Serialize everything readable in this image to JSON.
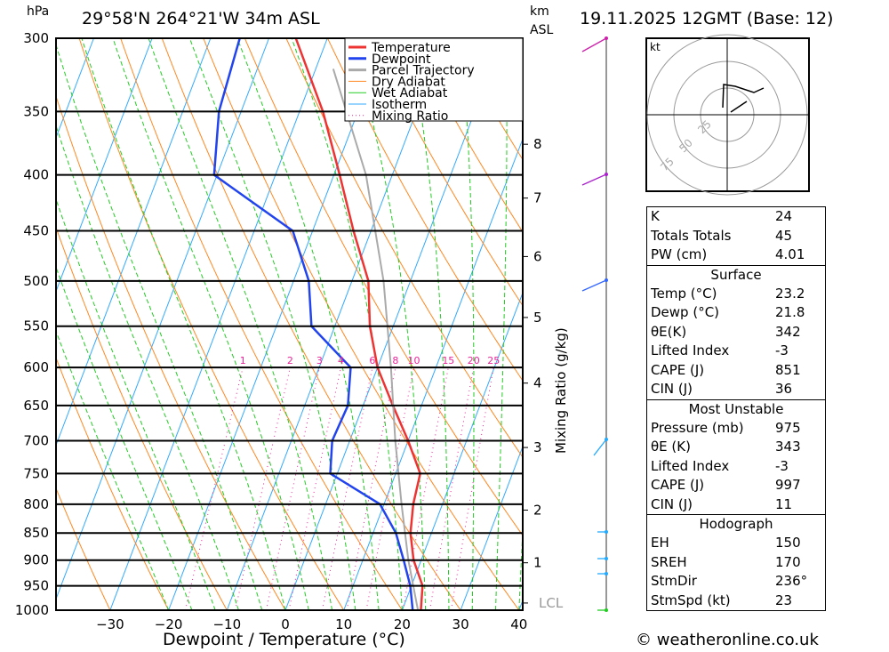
{
  "header": {
    "hpa": "hPa",
    "location": "29°58'N 264°21'W 34m ASL",
    "km": "km",
    "asl": "ASL",
    "datetime": "19.11.2025 12GMT (Base: 12)"
  },
  "chart_data": {
    "type": "line",
    "title": "29°58'N 264°21'W 34m ASL",
    "xlabel": "Dewpoint / Temperature (°C)",
    "ylabel": "hPa",
    "y2label": "Mixing Ratio (g/kg)",
    "xlim": [
      -40,
      40
    ],
    "ylim": [
      1000,
      300
    ],
    "x_ticks": [
      -30,
      -20,
      -10,
      0,
      10,
      20,
      30,
      40
    ],
    "p_ticks": [
      300,
      350,
      400,
      450,
      500,
      550,
      600,
      650,
      700,
      750,
      800,
      850,
      900,
      950,
      1000
    ],
    "km_ticks": [
      {
        "km": "8",
        "p": 375
      },
      {
        "km": "7",
        "p": 420
      },
      {
        "km": "6",
        "p": 475
      },
      {
        "km": "5",
        "p": 540
      },
      {
        "km": "4",
        "p": 620
      },
      {
        "km": "3",
        "p": 710
      },
      {
        "km": "2",
        "p": 810
      },
      {
        "km": "1",
        "p": 905
      },
      {
        "km": "LCL",
        "p": 985
      }
    ],
    "mixing_ratio_labels": [
      "1",
      "2",
      "3",
      "4",
      "6",
      "8",
      "10",
      "15",
      "20",
      "25"
    ],
    "pressure": [
      1000,
      950,
      900,
      850,
      800,
      750,
      700,
      650,
      600,
      550,
      500,
      450,
      400,
      350,
      300
    ],
    "series": [
      {
        "name": "Temperature",
        "color": "#ee3333",
        "values": [
          23.2,
          21.9,
          18.7,
          16.4,
          15.0,
          14.2,
          10.0,
          5.1,
          0.0,
          -4.0,
          -7.2,
          -13.0,
          -19.0,
          -26.0,
          -35.4
        ]
      },
      {
        "name": "Dewpoint",
        "color": "#2244ee",
        "values": [
          21.8,
          19.8,
          17.0,
          13.9,
          9.3,
          -1.2,
          -3.0,
          -2.6,
          -4.6,
          -14.0,
          -17.4,
          -23.4,
          -40.5,
          -43.8,
          -45.0
        ]
      },
      {
        "name": "Parcel Trajectory",
        "color": "#aaaaaa",
        "pressure": [
          1000,
          900,
          800,
          700,
          600,
          500,
          400,
          320
        ],
        "values": [
          22.7,
          17.8,
          13.0,
          7.8,
          2.3,
          -4.6,
          -14.5,
          -27
        ]
      }
    ],
    "legend": [
      "Temperature",
      "Dewpoint",
      "Parcel Trajectory",
      "Dry Adiabat",
      "Wet Adiabat",
      "Isotherm",
      "Mixing Ratio"
    ],
    "legend_placement": "top-right"
  },
  "hodograph": {
    "unit": "kt",
    "rings": [
      "25",
      "50",
      "75"
    ]
  },
  "indices": {
    "k": {
      "label": "K",
      "value": "24"
    },
    "tt": {
      "label": "Totals Totals",
      "value": "45"
    },
    "pw": {
      "label": "PW (cm)",
      "value": "4.01"
    },
    "surface": {
      "title": "Surface",
      "rows": [
        [
          "Temp (°C)",
          "23.2"
        ],
        [
          "Dewp (°C)",
          "21.8"
        ],
        [
          "θE(K)",
          "342"
        ],
        [
          "Lifted Index",
          "-3"
        ],
        [
          "CAPE (J)",
          "851"
        ],
        [
          "CIN (J)",
          "36"
        ]
      ]
    },
    "mu": {
      "title": "Most Unstable",
      "rows": [
        [
          "Pressure (mb)",
          "975"
        ],
        [
          "θE (K)",
          "343"
        ],
        [
          "Lifted Index",
          "-3"
        ],
        [
          "CAPE (J)",
          "997"
        ],
        [
          "CIN (J)",
          "11"
        ]
      ]
    },
    "hodo": {
      "title": "Hodograph",
      "rows": [
        [
          "EH",
          "150"
        ],
        [
          "SREH",
          "170"
        ],
        [
          "StmDir",
          "236°"
        ],
        [
          "StmSpd (kt)",
          "23"
        ]
      ]
    }
  },
  "footer": {
    "copyright": "© weatheronline.co.uk"
  }
}
